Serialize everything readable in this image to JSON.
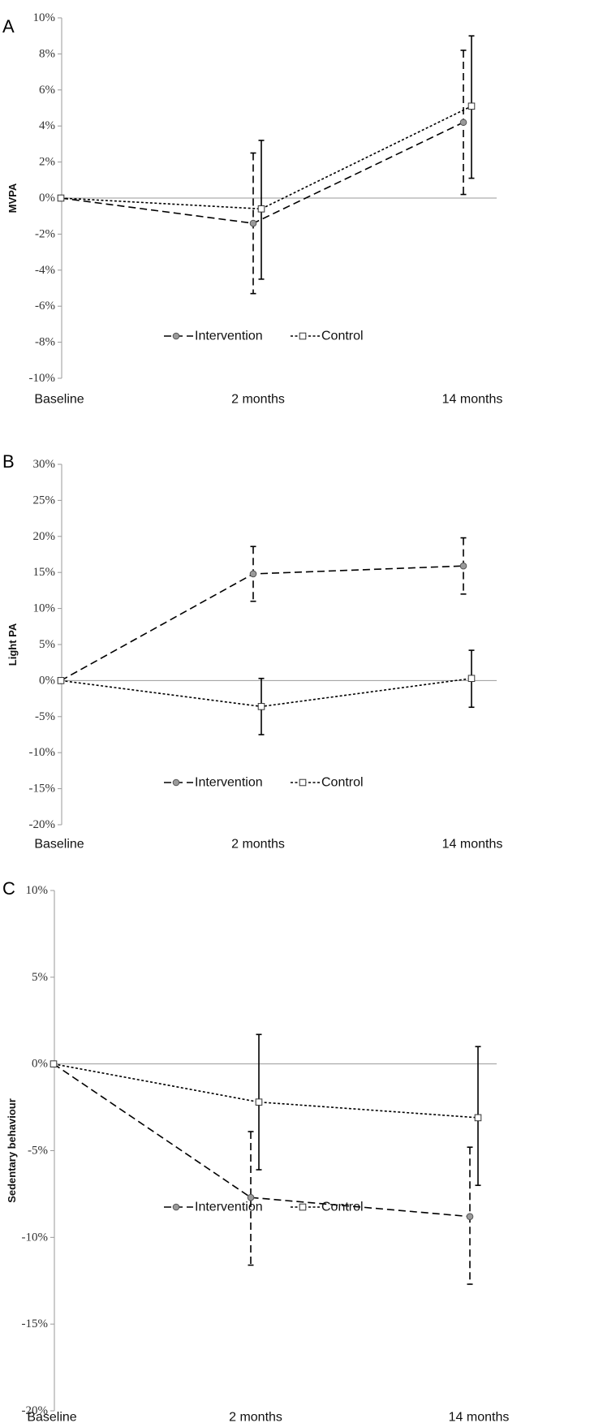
{
  "chart_data": [
    {
      "type": "line",
      "panel": "A",
      "title": "",
      "ylabel": "MVPA",
      "xlabel": "",
      "categories": [
        "Baseline",
        "2 months",
        "14 months"
      ],
      "ylim": [
        -10,
        10
      ],
      "yticks": [
        -10,
        -8,
        -6,
        -4,
        -2,
        0,
        2,
        4,
        6,
        8,
        10
      ],
      "ytick_labels": [
        "-10%",
        "-8%",
        "-6%",
        "-4%",
        "-2%",
        "0%",
        "2%",
        "4%",
        "6%",
        "8%",
        "10%"
      ],
      "series": [
        {
          "name": "Intervention",
          "values": [
            0,
            -1.4,
            4.2
          ],
          "err_low": [
            null,
            -5.3,
            0.2
          ],
          "err_high": [
            null,
            2.5,
            8.2
          ],
          "marker": "circle",
          "dash": "long"
        },
        {
          "name": "Control",
          "values": [
            0,
            -0.6,
            5.1
          ],
          "err_low": [
            null,
            -4.5,
            1.1
          ],
          "err_high": [
            null,
            3.2,
            9.0
          ],
          "marker": "square",
          "dash": "short"
        }
      ],
      "legend": "bottom-center"
    },
    {
      "type": "line",
      "panel": "B",
      "title": "",
      "ylabel": "Light PA",
      "xlabel": "",
      "categories": [
        "Baseline",
        "2 months",
        "14 months"
      ],
      "ylim": [
        -20,
        30
      ],
      "yticks": [
        -20,
        -15,
        -10,
        -5,
        0,
        5,
        10,
        15,
        20,
        25,
        30
      ],
      "ytick_labels": [
        "-20%",
        "-15%",
        "-10%",
        "-5%",
        "0%",
        "5%",
        "10%",
        "15%",
        "20%",
        "25%",
        "30%"
      ],
      "series": [
        {
          "name": "Intervention",
          "values": [
            0,
            14.8,
            15.9
          ],
          "err_low": [
            null,
            11.0,
            12.0
          ],
          "err_high": [
            null,
            18.6,
            19.8
          ],
          "marker": "circle",
          "dash": "long"
        },
        {
          "name": "Control",
          "values": [
            0,
            -3.6,
            0.3
          ],
          "err_low": [
            null,
            -7.5,
            -3.7
          ],
          "err_high": [
            null,
            0.3,
            4.2
          ],
          "marker": "square",
          "dash": "short"
        }
      ],
      "legend": "bottom-center"
    },
    {
      "type": "line",
      "panel": "C",
      "title": "",
      "ylabel": "Sedentary behaviour",
      "xlabel": "",
      "categories": [
        "Baseline",
        "2 months",
        "14 months"
      ],
      "ylim": [
        -20,
        10
      ],
      "yticks": [
        -20,
        -15,
        -10,
        -5,
        0,
        5,
        10
      ],
      "ytick_labels": [
        "-20%",
        "-15%",
        "-10%",
        "-5%",
        "0%",
        "5%",
        "10%"
      ],
      "series": [
        {
          "name": "Intervention",
          "values": [
            0,
            -7.7,
            -8.8
          ],
          "err_low": [
            null,
            -11.6,
            -12.7
          ],
          "err_high": [
            null,
            -3.9,
            -4.8
          ],
          "marker": "circle",
          "dash": "long"
        },
        {
          "name": "Control",
          "values": [
            0,
            -2.2,
            -3.1
          ],
          "err_low": [
            null,
            -6.1,
            -7.0
          ],
          "err_high": [
            null,
            1.7,
            1.0
          ],
          "marker": "square",
          "dash": "short"
        }
      ],
      "legend": "bottom-center"
    }
  ],
  "colors": {
    "line": "#000000",
    "marker_fill_intervention": "#9a9a9a",
    "marker_fill_control": "#ffffff",
    "zero_line": "#9a9a9a",
    "axis": "#9a9a9a"
  }
}
